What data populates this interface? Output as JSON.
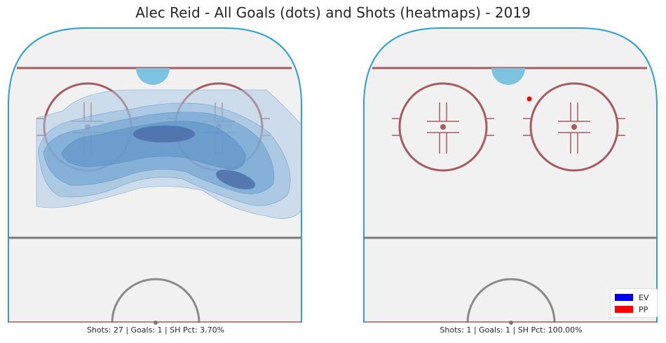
{
  "title": "Alec Reid - All Goals (dots) and Shots (heatmaps) - 2019",
  "colors": {
    "ice": "#f1f1f1",
    "boards": "#2aa1d0",
    "red_line": "#a65b60",
    "blue_line": "#7a7a7a",
    "crease": "#7cc3e0",
    "heat_levels": [
      "#cfe0ef",
      "#a9cbe3",
      "#7fb0d9",
      "#5a8fc4",
      "#4b74ad"
    ],
    "EV": "#0000ff",
    "PP": "#ff0000"
  },
  "legend": [
    {
      "label": "EV",
      "color": "#0000ff"
    },
    {
      "label": "PP",
      "color": "#ff0000"
    }
  ],
  "chart_data": [
    {
      "type": "heatmap",
      "panel": "All shots (KDE) with goals",
      "caption": "Shots: 27 | Goals: 1 | SH Pct: 3.70%",
      "shots": 27,
      "goals": 1,
      "sh_pct": "3.70%",
      "goal_points": []
    },
    {
      "type": "scatter",
      "panel": "Goals",
      "caption": "Shots: 1 | Goals: 1 | SH Pct: 100.00%",
      "shots": 1,
      "goals": 1,
      "sh_pct": "100.00%",
      "goal_points": [
        {
          "strength": "PP"
        }
      ]
    }
  ]
}
